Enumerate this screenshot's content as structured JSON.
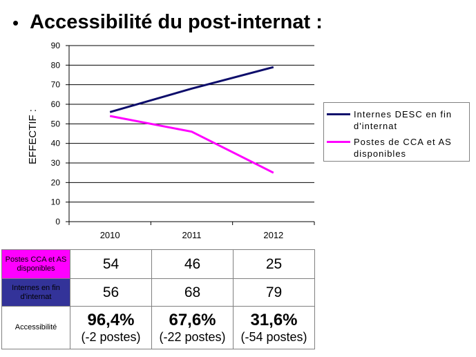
{
  "slide": {
    "bullet": "•",
    "title": "Accessibilité du post-internat :"
  },
  "chart_data": {
    "type": "line",
    "x": [
      "2010",
      "2011",
      "2012"
    ],
    "ylabel": "EFFECTIF :",
    "xlabel": "",
    "ylim": [
      0,
      90
    ],
    "yticks": [
      "0",
      "10",
      "20",
      "30",
      "40",
      "50",
      "60",
      "70",
      "80",
      "90"
    ],
    "legend_position": "right",
    "series": [
      {
        "name": "Internes DESC en fin d'internat",
        "color": "#0d0d6b",
        "values": [
          56,
          68,
          79
        ]
      },
      {
        "name": "Postes de CCA et AS disponibles",
        "color": "#ff00ff",
        "values": [
          54,
          46,
          25
        ]
      }
    ]
  },
  "table": {
    "rows": [
      {
        "label": "Postes CCA et AS disponibles",
        "color": "#ff00ff",
        "text_color": "#000000",
        "values": [
          "54",
          "46",
          "25"
        ]
      },
      {
        "label": "Internes en fin d'internat",
        "color": "#333399",
        "text_color": "#000000",
        "values": [
          "56",
          "68",
          "79"
        ]
      }
    ],
    "accessibility": {
      "label": "Accessibilité",
      "cells": [
        {
          "pct": "96,4%",
          "note": "(-2 postes)"
        },
        {
          "pct": "67,6%",
          "note": "(-22 postes)"
        },
        {
          "pct": "31,6%",
          "note": "(-54 postes)"
        }
      ]
    }
  }
}
